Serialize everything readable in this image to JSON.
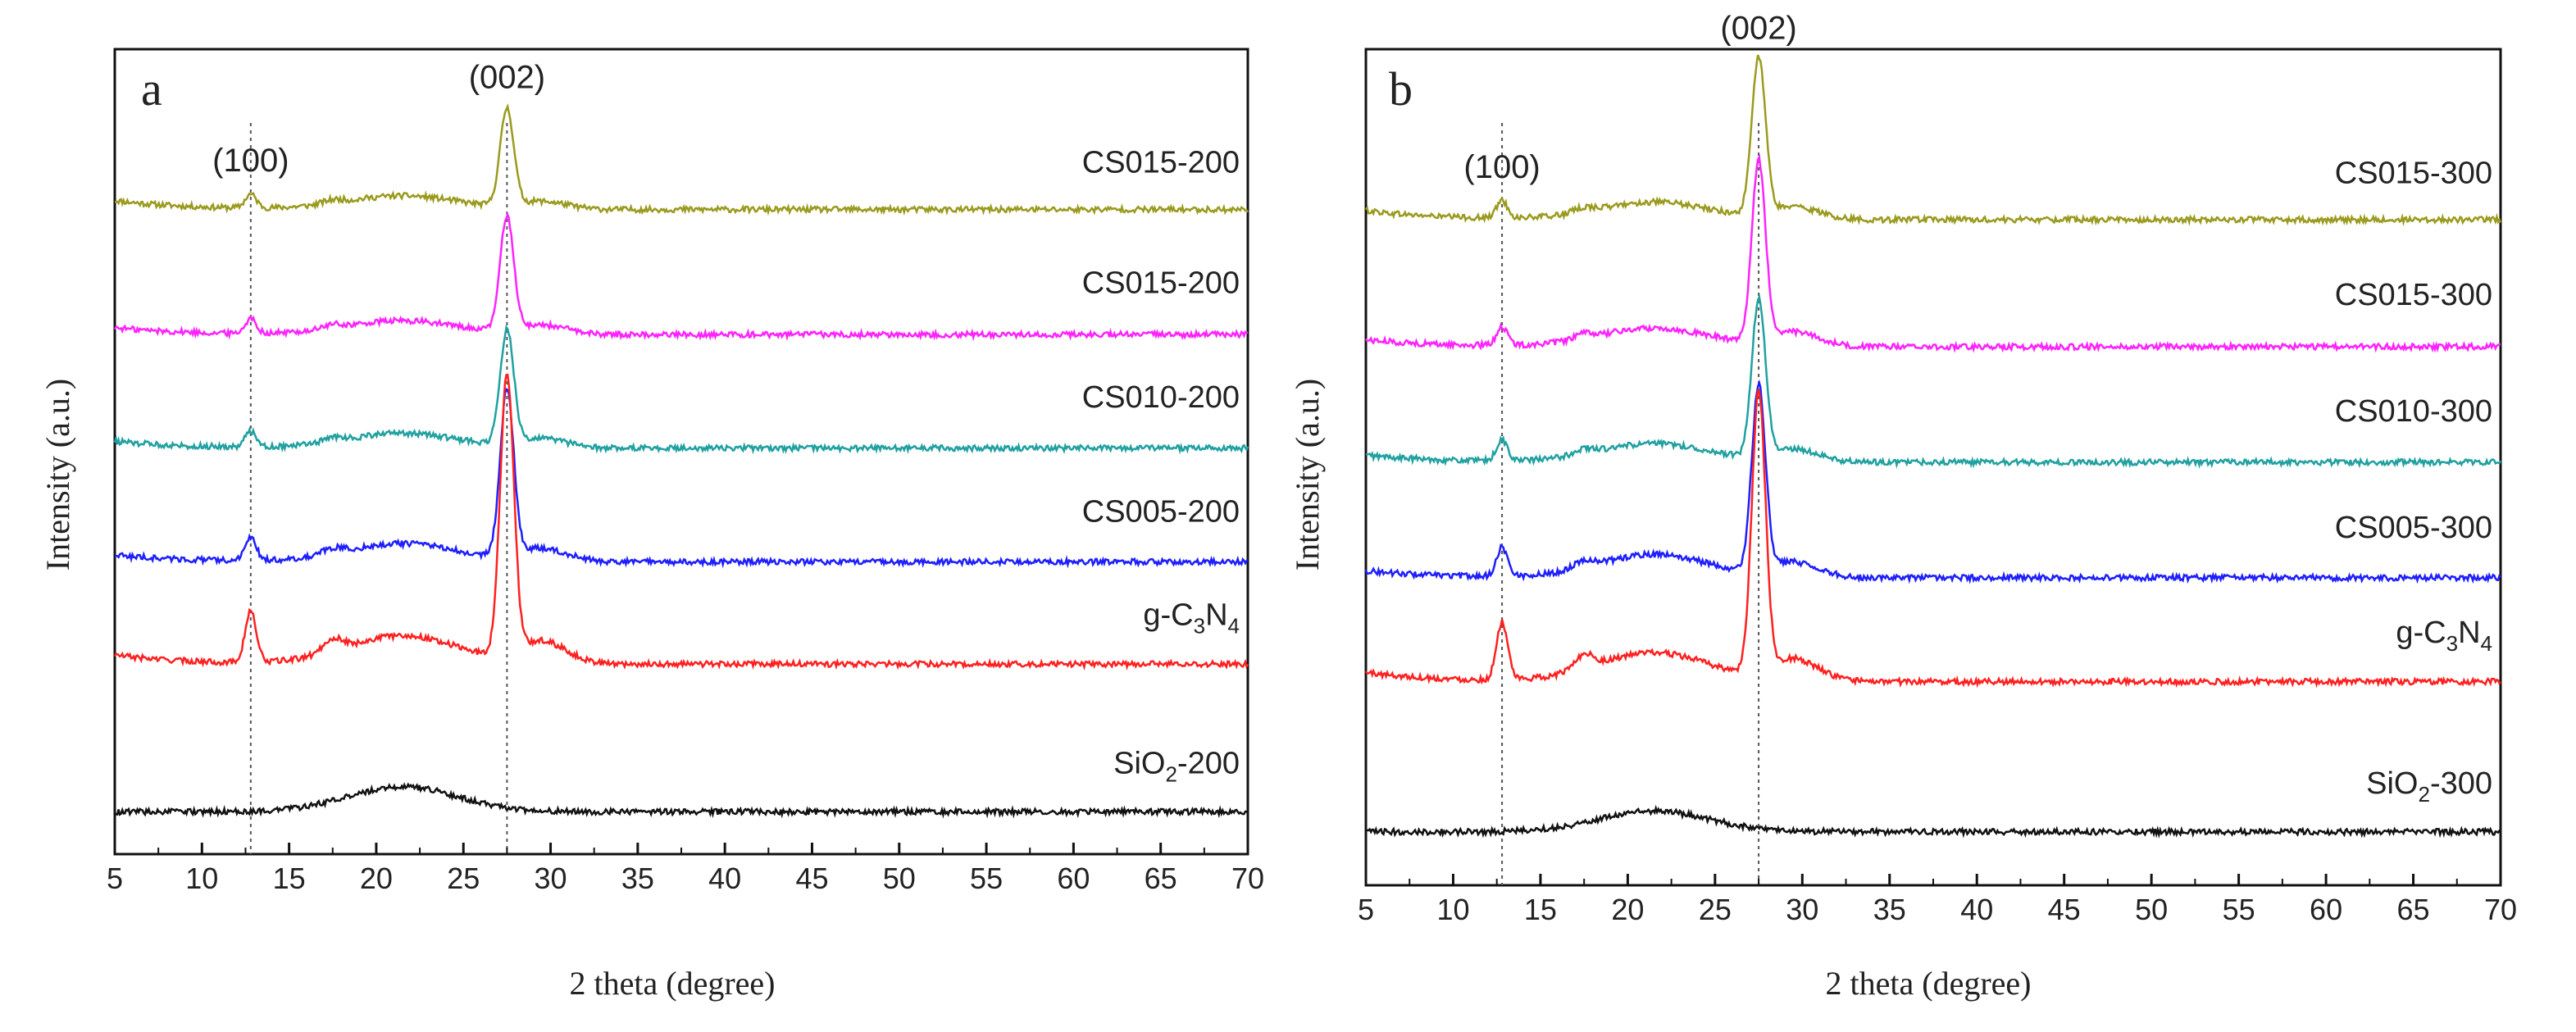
{
  "chart_data": [
    {
      "panel": "a",
      "type": "line",
      "title": "",
      "xlabel": "2 theta (degree)",
      "ylabel": "Intensity (a.u.)",
      "xlim": [
        5,
        70
      ],
      "xticks": [
        5,
        10,
        15,
        20,
        25,
        30,
        35,
        40,
        45,
        50,
        55,
        60,
        65,
        70
      ],
      "yticks": "none (arbitrary units, stacked offsets)",
      "reference_lines": [
        12.8,
        27.5
      ],
      "peak_annotations": [
        {
          "label": "(100)",
          "x": 12.8
        },
        {
          "label": "(002)",
          "x": 27.5
        }
      ],
      "series": [
        {
          "name": "CS015-200",
          "label_main": "CS015-200",
          "label_sub": "",
          "label_tail": "",
          "color": "#9a9a1e",
          "offset": 5.0,
          "baseline": 0.55,
          "peak100": 0.12,
          "peak002": 0.85,
          "hump": 0.12,
          "slope": 0.08
        },
        {
          "name": "CS015-200",
          "label_main": "CS015-200",
          "label_sub": "",
          "label_tail": "",
          "color": "#ff22ff",
          "offset": 4.0,
          "baseline": 0.45,
          "peak100": 0.13,
          "peak002": 1.0,
          "hump": 0.12,
          "slope": 0.06
        },
        {
          "name": "CS010-200",
          "label_main": "CS010-200",
          "label_sub": "",
          "label_tail": "",
          "color": "#20a0a0",
          "offset": 3.0,
          "baseline": 0.45,
          "peak100": 0.14,
          "peak002": 1.0,
          "hump": 0.13,
          "slope": 0.06
        },
        {
          "name": "CS005-200",
          "label_main": "CS005-200",
          "label_sub": "",
          "label_tail": "",
          "color": "#1e1eff",
          "offset": 2.0,
          "baseline": 0.45,
          "peak100": 0.2,
          "peak002": 1.45,
          "hump": 0.16,
          "slope": 0.06
        },
        {
          "name": "g-C3N4",
          "label_main": "g-C",
          "label_sub": "3",
          "label_mid": "N",
          "label_sub2": "4",
          "label_tail": "",
          "color": "#ff2020",
          "offset": 0.85,
          "baseline": 0.7,
          "peak100": 0.45,
          "peak002": 2.45,
          "hump": 0.25,
          "slope": 0.08
        },
        {
          "name": "SiO2-200",
          "label_main": "SiO",
          "label_sub": "2",
          "label_tail": "-200",
          "color": "#111111",
          "offset": 0.0,
          "baseline": 0.25,
          "peak100": 0.0,
          "peak002": 0.0,
          "hump": 0.22,
          "slope": 0.0
        }
      ]
    },
    {
      "panel": "b",
      "type": "line",
      "title": "",
      "xlabel": "2 theta (degree)",
      "ylabel": "Intensity (a.u.)",
      "xlim": [
        5,
        70
      ],
      "xticks": [
        5,
        10,
        15,
        20,
        25,
        30,
        35,
        40,
        45,
        50,
        55,
        60,
        65,
        70
      ],
      "yticks": "none (arbitrary units, stacked offsets)",
      "reference_lines": [
        12.8,
        27.5
      ],
      "peak_annotations": [
        {
          "label": "(100)",
          "x": 12.8
        },
        {
          "label": "(002)",
          "x": 27.5
        }
      ],
      "series": [
        {
          "name": "CS015-300",
          "label_main": "CS015-300",
          "label_sub": "",
          "label_tail": "",
          "color": "#9a9a1e",
          "offset": 5.0,
          "baseline": 0.55,
          "peak100": 0.15,
          "peak002": 1.35,
          "hump": 0.15,
          "slope": 0.08
        },
        {
          "name": "CS015-300",
          "label_main": "CS015-300",
          "label_sub": "",
          "label_tail": "",
          "color": "#ff22ff",
          "offset": 4.0,
          "baseline": 0.45,
          "peak100": 0.16,
          "peak002": 1.55,
          "hump": 0.16,
          "slope": 0.06
        },
        {
          "name": "CS010-300",
          "label_main": "CS010-300",
          "label_sub": "",
          "label_tail": "",
          "color": "#20a0a0",
          "offset": 3.0,
          "baseline": 0.45,
          "peak100": 0.18,
          "peak002": 1.35,
          "hump": 0.16,
          "slope": 0.06
        },
        {
          "name": "CS005-300",
          "label_main": "CS005-300",
          "label_sub": "",
          "label_tail": "",
          "color": "#1e1eff",
          "offset": 2.0,
          "baseline": 0.45,
          "peak100": 0.25,
          "peak002": 1.6,
          "hump": 0.2,
          "slope": 0.06
        },
        {
          "name": "g-C3N4",
          "label_main": "g-C",
          "label_sub": "3",
          "label_mid": "N",
          "label_sub2": "4",
          "label_tail": "",
          "color": "#ff2020",
          "offset": 0.85,
          "baseline": 0.7,
          "peak100": 0.5,
          "peak002": 2.4,
          "hump": 0.25,
          "slope": 0.08
        },
        {
          "name": "SiO2-300",
          "label_main": "SiO",
          "label_sub": "2",
          "label_tail": "-300",
          "color": "#111111",
          "offset": 0.0,
          "baseline": 0.25,
          "peak100": 0.0,
          "peak002": 0.0,
          "hump": 0.18,
          "slope": 0.0
        }
      ]
    }
  ]
}
